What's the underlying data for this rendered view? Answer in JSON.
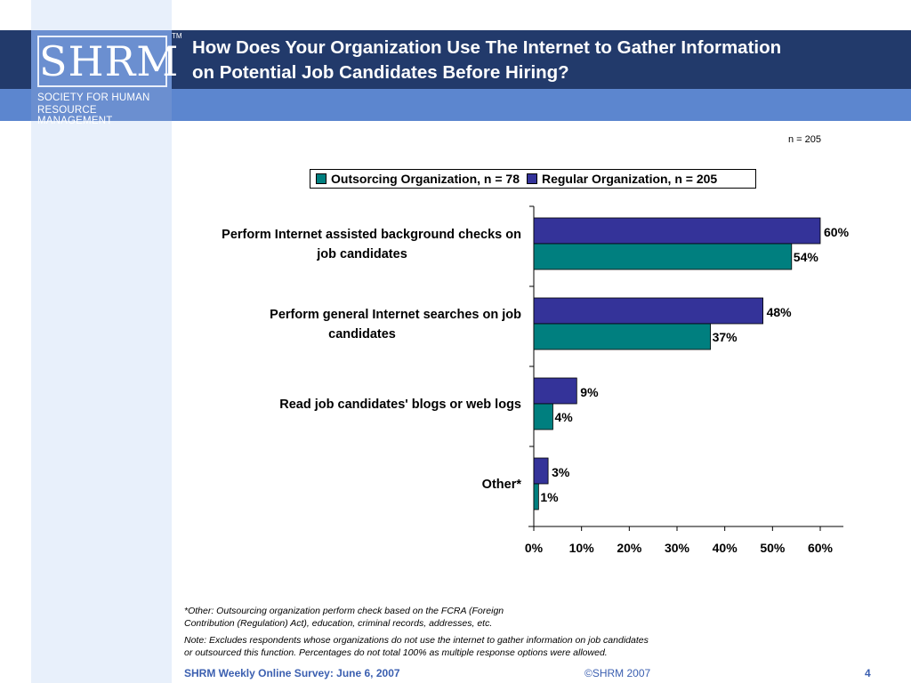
{
  "logo": {
    "wordmark": "SHRM",
    "tm": "TM",
    "line1": "SOCIETY FOR HUMAN",
    "line2": "RESOURCE MANAGEMENT"
  },
  "slide": {
    "title_line1": "How Does Your Organization Use The Internet to Gather Information",
    "title_line2": "on Potential Job Candidates Before Hiring?",
    "n_label": "n = 205"
  },
  "chart_data": {
    "type": "bar",
    "orientation": "horizontal",
    "categories": [
      [
        "Perform Internet assisted background checks on",
        "job candidates"
      ],
      [
        "Perform general Internet searches on job",
        "candidates"
      ],
      [
        "Read job candidates' blogs or web logs"
      ],
      [
        "Other*"
      ]
    ],
    "series": [
      {
        "name": "Regular Organization, n = 205",
        "color": "#343399",
        "values": [
          60,
          48,
          9,
          3
        ],
        "labels": [
          "60%",
          "48%",
          "9%",
          "3%"
        ]
      },
      {
        "name": "Outsorcing Organization, n = 78",
        "color": "#007f7f",
        "values": [
          54,
          37,
          4,
          1
        ],
        "labels": [
          "54%",
          "37%",
          "4%",
          "1%"
        ]
      }
    ],
    "legend_order": [
      "Outsorcing Organization, n = 78",
      "Regular Organization, n = 205"
    ],
    "xlim": [
      0,
      60
    ],
    "x_ticks": [
      0,
      10,
      20,
      30,
      40,
      50,
      60
    ],
    "x_tick_labels": [
      "0%",
      "10%",
      "20%",
      "30%",
      "40%",
      "50%",
      "60%"
    ],
    "legend_position": "top"
  },
  "footnotes": {
    "note1_line1": "*Other: Outsourcing organization perform check based on the FCRA (Foreign",
    "note1_line2": "Contribution (Regulation) Act), education, criminal records, addresses, etc.",
    "note2_line1": "Note: Excludes respondents whose organizations do not use the internet to gather information on job candidates",
    "note2_line2": "or outsourced this function. Percentages do not total 100% as multiple response options were allowed."
  },
  "footer": {
    "survey": "SHRM Weekly Online Survey: June 6, 2007",
    "copyright": "©SHRM 2007",
    "page": "4"
  }
}
